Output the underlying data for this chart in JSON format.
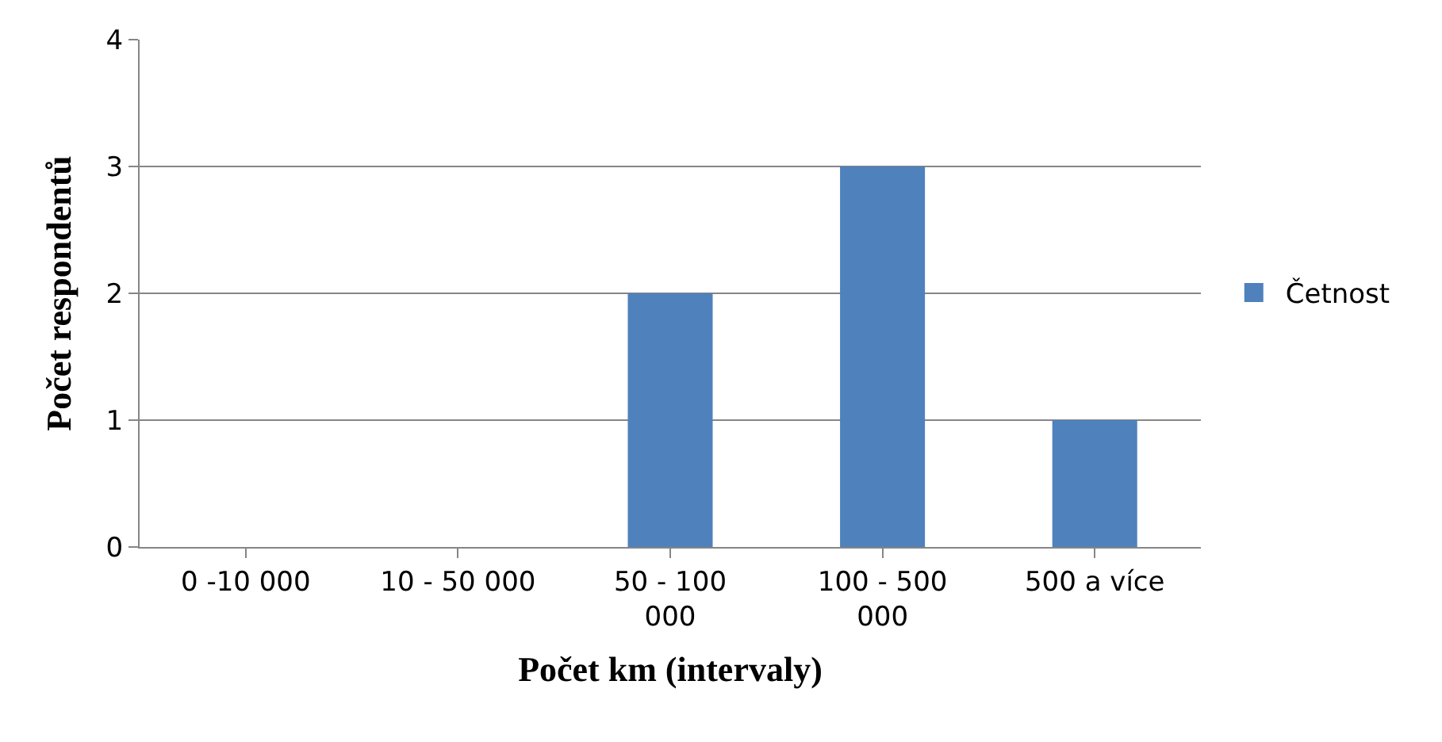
{
  "chart_data": {
    "type": "bar",
    "categories": [
      "0 -10 000",
      "10 - 50 000",
      "50 - 100 000",
      "100 - 500 000",
      "500 a více"
    ],
    "series": [
      {
        "name": "Četnost",
        "color": "#4f81bd",
        "values": [
          0,
          0,
          2,
          3,
          1
        ]
      }
    ],
    "xlabel": "Počet km (intervaly)",
    "ylabel": "Počet respondentů",
    "ylim": [
      0,
      4
    ],
    "yticks": [
      0,
      1,
      2,
      3,
      4
    ],
    "grid": "y",
    "legend": "right"
  }
}
